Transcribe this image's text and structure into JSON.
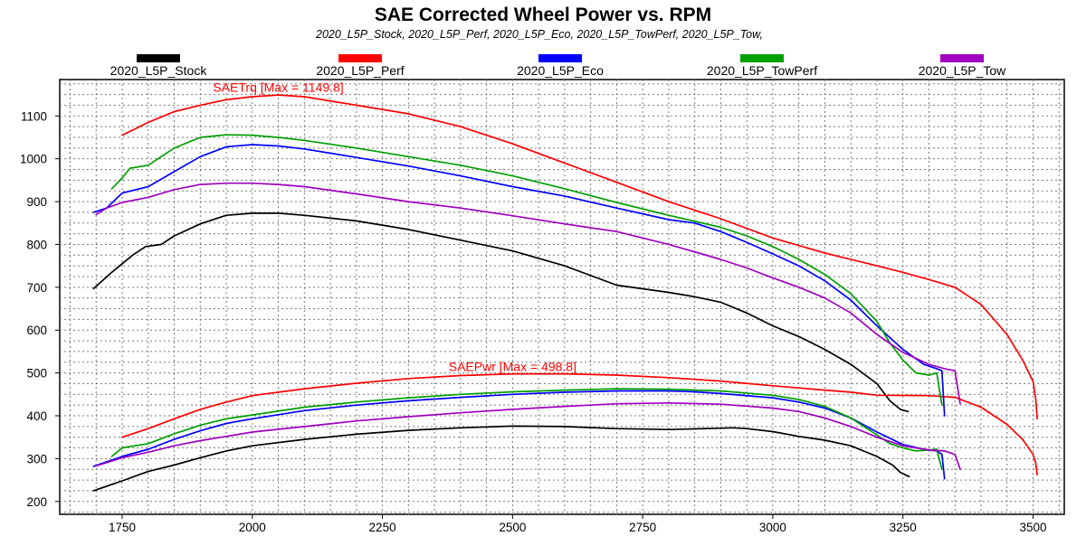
{
  "colors": {
    "2020_L5P_Stock": "#000000",
    "2020_L5P_Perf": "#ff0000",
    "2020_L5P_Eco": "#0000ff",
    "2020_L5P_TowPerf": "#00a000",
    "2020_L5P_Tow": "#a000c0"
  },
  "chart_data": {
    "type": "line",
    "title": "SAE Corrected Wheel Power vs. RPM",
    "subtitle": "2020_L5P_Stock, 2020_L5P_Perf, 2020_L5P_Eco, 2020_L5P_TowPerf, 2020_L5P_Tow,",
    "xlabel": "",
    "ylabel": "",
    "xlim": [
      1630,
      3560
    ],
    "ylim": [
      170,
      1185
    ],
    "xticks": [
      1750,
      2000,
      2250,
      2500,
      2750,
      3000,
      3250,
      3500
    ],
    "xtick_labels": [
      "1750",
      "2000",
      "2250",
      "2500",
      "2750",
      "3000",
      "3250",
      "3500"
    ],
    "yticks": [
      200,
      300,
      400,
      500,
      600,
      700,
      800,
      900,
      1000,
      1100
    ],
    "ytick_labels": [
      "200",
      "300",
      "400",
      "500",
      "600",
      "700",
      "800",
      "900",
      "1000",
      "1100"
    ],
    "grid": true,
    "legend_position": "top",
    "legend": [
      "2020_L5P_Stock",
      "2020_L5P_Perf",
      "2020_L5P_Eco",
      "2020_L5P_TowPerf",
      "2020_L5P_Tow"
    ],
    "annotations": [
      {
        "text": "SAETrq [Max = 1149.8]",
        "x": 2050,
        "y": 1152,
        "color": "#ff0000"
      },
      {
        "text": "SAEPwr [Max = 498.8]",
        "x": 2500,
        "y": 500,
        "color": "#ff0000"
      }
    ],
    "series": [
      {
        "name": "2020_L5P_Stock",
        "metric": "SAETrq",
        "x": [
          1695,
          1730,
          1770,
          1795,
          1825,
          1850,
          1900,
          1950,
          2000,
          2050,
          2100,
          2200,
          2300,
          2400,
          2500,
          2600,
          2700,
          2800,
          2850,
          2900,
          2950,
          3000,
          3050,
          3100,
          3150,
          3200,
          3225,
          3245,
          3260
        ],
        "y": [
          697,
          735,
          775,
          795,
          800,
          820,
          848,
          868,
          873,
          873,
          868,
          855,
          835,
          810,
          785,
          750,
          705,
          688,
          678,
          665,
          640,
          610,
          585,
          555,
          520,
          475,
          435,
          415,
          410
        ]
      },
      {
        "name": "2020_L5P_Stock",
        "metric": "SAEPwr",
        "x": [
          1695,
          1750,
          1800,
          1850,
          1900,
          1950,
          2000,
          2100,
          2200,
          2300,
          2400,
          2500,
          2600,
          2700,
          2800,
          2900,
          2925,
          2950,
          3000,
          3050,
          3100,
          3150,
          3200,
          3230,
          3245,
          3262
        ],
        "y": [
          225,
          248,
          270,
          285,
          302,
          318,
          330,
          345,
          357,
          366,
          372,
          376,
          375,
          370,
          368,
          371,
          372,
          370,
          363,
          352,
          343,
          330,
          305,
          285,
          268,
          258
        ]
      },
      {
        "name": "2020_L5P_Perf",
        "metric": "SAETrq",
        "x": [
          1750,
          1800,
          1850,
          1900,
          1950,
          2000,
          2050,
          2100,
          2200,
          2300,
          2400,
          2500,
          2600,
          2700,
          2800,
          2900,
          3000,
          3100,
          3200,
          3250,
          3300,
          3350,
          3400,
          3450,
          3480,
          3500,
          3505,
          3508
        ],
        "y": [
          1055,
          1085,
          1110,
          1125,
          1138,
          1145,
          1149,
          1145,
          1125,
          1105,
          1075,
          1035,
          990,
          945,
          900,
          860,
          815,
          780,
          750,
          735,
          718,
          700,
          660,
          590,
          530,
          480,
          440,
          393
        ]
      },
      {
        "name": "2020_L5P_Perf",
        "metric": "SAEPwr",
        "x": [
          1750,
          1800,
          1850,
          1900,
          1950,
          2000,
          2100,
          2200,
          2300,
          2400,
          2500,
          2600,
          2700,
          2800,
          2900,
          3000,
          3050,
          3100,
          3150,
          3200,
          3300,
          3350,
          3400,
          3450,
          3480,
          3500,
          3505,
          3508
        ],
        "y": [
          350,
          370,
          393,
          415,
          432,
          447,
          463,
          476,
          487,
          494,
          498,
          498,
          495,
          489,
          481,
          470,
          465,
          460,
          455,
          448,
          447,
          443,
          420,
          380,
          345,
          310,
          290,
          262
        ]
      },
      {
        "name": "2020_L5P_Eco",
        "metric": "SAETrq",
        "x": [
          1695,
          1720,
          1750,
          1800,
          1850,
          1900,
          1950,
          2000,
          2050,
          2100,
          2200,
          2300,
          2400,
          2500,
          2600,
          2700,
          2800,
          2850,
          2900,
          2950,
          3000,
          3050,
          3100,
          3150,
          3200,
          3250,
          3290,
          3315,
          3325,
          3330
        ],
        "y": [
          875,
          885,
          920,
          935,
          970,
          1005,
          1028,
          1033,
          1030,
          1023,
          1003,
          983,
          960,
          935,
          913,
          885,
          858,
          850,
          830,
          805,
          778,
          750,
          715,
          670,
          610,
          555,
          520,
          510,
          505,
          400
        ]
      },
      {
        "name": "2020_L5P_Eco",
        "metric": "SAEPwr",
        "x": [
          1695,
          1750,
          1800,
          1850,
          1900,
          1950,
          2000,
          2100,
          2200,
          2300,
          2400,
          2500,
          2600,
          2700,
          2800,
          2850,
          2900,
          3000,
          3050,
          3100,
          3150,
          3200,
          3250,
          3290,
          3315,
          3325,
          3330
        ],
        "y": [
          282,
          305,
          322,
          345,
          365,
          382,
          393,
          412,
          425,
          435,
          443,
          450,
          455,
          458,
          458,
          456,
          452,
          442,
          432,
          418,
          395,
          362,
          333,
          322,
          318,
          310,
          253
        ]
      },
      {
        "name": "2020_L5P_TowPerf",
        "metric": "SAETrq",
        "x": [
          1730,
          1750,
          1765,
          1800,
          1850,
          1900,
          1950,
          2000,
          2050,
          2100,
          2200,
          2300,
          2400,
          2500,
          2600,
          2700,
          2800,
          2900,
          2950,
          3000,
          3050,
          3100,
          3150,
          3200,
          3225,
          3250,
          3275,
          3300,
          3315,
          3325
        ],
        "y": [
          930,
          955,
          978,
          985,
          1025,
          1050,
          1056,
          1055,
          1050,
          1043,
          1025,
          1005,
          985,
          960,
          930,
          898,
          868,
          840,
          820,
          795,
          765,
          730,
          685,
          620,
          570,
          530,
          500,
          495,
          500,
          425
        ]
      },
      {
        "name": "2020_L5P_TowPerf",
        "metric": "SAEPwr",
        "x": [
          1730,
          1750,
          1800,
          1850,
          1900,
          1950,
          2000,
          2100,
          2200,
          2300,
          2400,
          2500,
          2600,
          2700,
          2800,
          2900,
          3000,
          3050,
          3100,
          3150,
          3200,
          3225,
          3250,
          3275,
          3300,
          3315,
          3325
        ],
        "y": [
          305,
          325,
          335,
          358,
          378,
          393,
          402,
          420,
          432,
          442,
          450,
          456,
          460,
          463,
          462,
          458,
          448,
          438,
          422,
          395,
          355,
          335,
          325,
          318,
          320,
          322,
          275
        ]
      },
      {
        "name": "2020_L5P_Tow",
        "metric": "SAETrq",
        "x": [
          1700,
          1720,
          1750,
          1800,
          1850,
          1900,
          1950,
          2000,
          2050,
          2100,
          2200,
          2300,
          2400,
          2500,
          2600,
          2700,
          2800,
          2900,
          2950,
          3000,
          3050,
          3100,
          3150,
          3200,
          3250,
          3300,
          3330,
          3350,
          3360
        ],
        "y": [
          870,
          885,
          898,
          910,
          928,
          940,
          943,
          943,
          940,
          935,
          918,
          900,
          885,
          867,
          848,
          830,
          800,
          765,
          745,
          722,
          700,
          675,
          640,
          590,
          548,
          520,
          510,
          505,
          428
        ]
      },
      {
        "name": "2020_L5P_Tow",
        "metric": "SAEPwr",
        "x": [
          1700,
          1750,
          1800,
          1850,
          1900,
          1950,
          2000,
          2100,
          2200,
          2300,
          2400,
          2500,
          2600,
          2700,
          2800,
          2900,
          3000,
          3050,
          3100,
          3150,
          3200,
          3250,
          3300,
          3330,
          3350,
          3360
        ],
        "y": [
          283,
          302,
          315,
          330,
          342,
          352,
          362,
          375,
          388,
          398,
          407,
          415,
          422,
          428,
          430,
          427,
          418,
          410,
          395,
          375,
          350,
          330,
          320,
          318,
          310,
          275
        ]
      }
    ]
  }
}
